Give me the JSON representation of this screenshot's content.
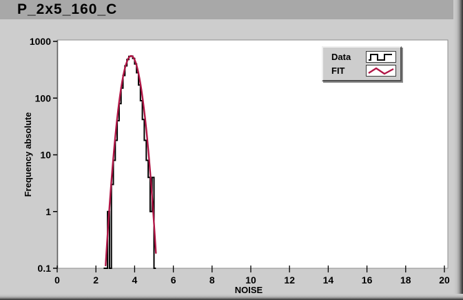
{
  "window": {
    "title": "P_2x5_160_C"
  },
  "legend": {
    "entries": [
      {
        "label": "Data"
      },
      {
        "label": "FIT"
      }
    ]
  },
  "chart_data": {
    "type": "histogram",
    "title": "",
    "xlabel": "NOISE",
    "ylabel": "Frequency absolute",
    "xlim": [
      0,
      20
    ],
    "ylim": [
      0.1,
      1000
    ],
    "yscale": "log",
    "grid": false,
    "legend_position": "top-right",
    "x_ticks": [
      0,
      2,
      4,
      6,
      8,
      10,
      12,
      14,
      16,
      18,
      20
    ],
    "x_tick_labels": [
      "0",
      "2",
      "4",
      "6",
      "8",
      "10",
      "12",
      "14",
      "16",
      "18",
      "20"
    ],
    "y_ticks": [
      1000,
      100,
      10,
      1,
      0.1
    ],
    "y_tick_labels": [
      "1000",
      "100",
      "10",
      "1",
      "0.1"
    ],
    "colors": {
      "data": "#000000",
      "fit": "#b01545",
      "plot_bg": "#ffffff",
      "panel_bg": "#cdcdcd",
      "titlebar_bg": "#a8a8a8"
    },
    "series": [
      {
        "name": "Data",
        "type": "step-histogram",
        "color": "#000000",
        "bin_start": 2.4,
        "bin_width": 0.1,
        "counts": [
          0,
          0,
          1,
          0,
          3,
          8,
          18,
          40,
          80,
          150,
          250,
          370,
          480,
          545,
          550,
          500,
          400,
          280,
          170,
          90,
          42,
          18,
          8,
          4,
          1,
          4,
          0
        ]
      },
      {
        "name": "FIT",
        "type": "gaussian-fit",
        "color": "#b01545",
        "amplitude": 555,
        "mean": 3.82,
        "sigma": 0.32,
        "x_start": 2.45,
        "x_end": 5.2,
        "x_step": 0.05
      }
    ]
  }
}
